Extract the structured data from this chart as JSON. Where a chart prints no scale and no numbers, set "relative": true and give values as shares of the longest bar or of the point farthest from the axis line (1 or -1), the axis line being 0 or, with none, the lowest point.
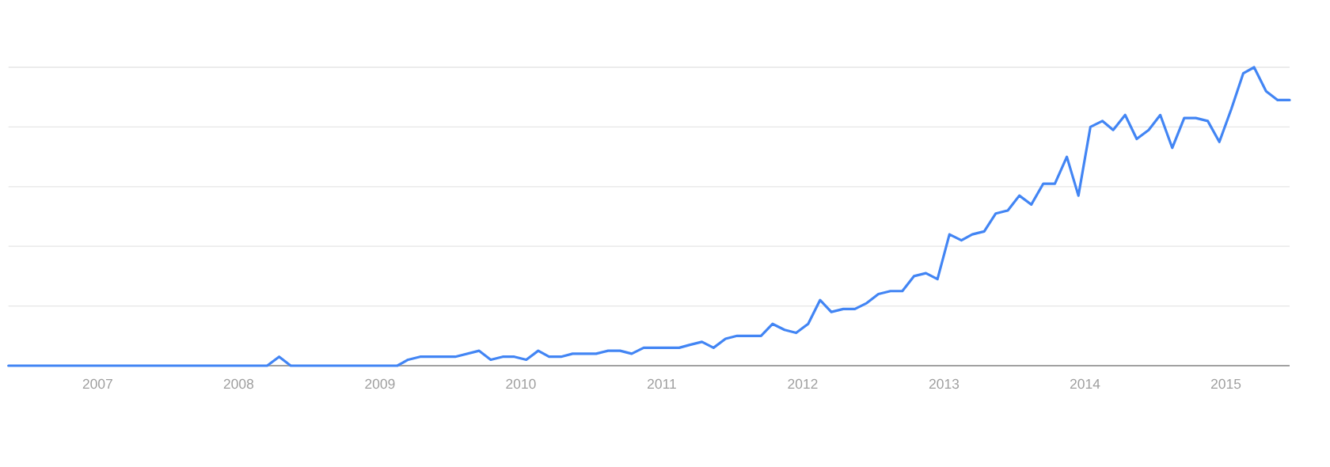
{
  "chart_data": {
    "type": "line",
    "relative": true,
    "color": "#4285f4",
    "grid": "y",
    "xlim": [
      "2006-05-15",
      "2015-06-15"
    ],
    "xticks": [
      "2007",
      "2008",
      "2009",
      "2010",
      "2011",
      "2012",
      "2013",
      "2014",
      "2015"
    ],
    "x": [
      "2006-05-15",
      "2006-06-15",
      "2006-07-15",
      "2006-08-15",
      "2006-09-15",
      "2006-10-15",
      "2006-11-15",
      "2006-12-15",
      "2007-01-15",
      "2007-02-15",
      "2007-03-15",
      "2007-04-15",
      "2007-05-15",
      "2007-06-15",
      "2007-07-15",
      "2007-08-15",
      "2007-09-15",
      "2007-10-15",
      "2007-11-15",
      "2007-12-15",
      "2008-01-15",
      "2008-02-15",
      "2008-03-15",
      "2008-04-15",
      "2008-05-15",
      "2008-06-15",
      "2008-07-15",
      "2008-08-15",
      "2008-09-15",
      "2008-10-15",
      "2008-11-15",
      "2008-12-15",
      "2009-01-15",
      "2009-02-15",
      "2009-03-15",
      "2009-04-15",
      "2009-05-15",
      "2009-06-15",
      "2009-07-15",
      "2009-08-15",
      "2009-09-15",
      "2009-10-15",
      "2009-11-15",
      "2009-12-15",
      "2010-01-15",
      "2010-02-15",
      "2010-03-15",
      "2010-04-15",
      "2010-05-15",
      "2010-06-15",
      "2010-07-15",
      "2010-08-15",
      "2010-09-15",
      "2010-10-15",
      "2010-11-15",
      "2010-12-15",
      "2011-01-15",
      "2011-02-15",
      "2011-03-15",
      "2011-04-15",
      "2011-05-15",
      "2011-06-15",
      "2011-07-15",
      "2011-08-15",
      "2011-09-15",
      "2011-10-15",
      "2011-11-15",
      "2011-12-15",
      "2012-01-15",
      "2012-02-15",
      "2012-03-15",
      "2012-04-15",
      "2012-05-15",
      "2012-06-15",
      "2012-07-15",
      "2012-08-15",
      "2012-09-15",
      "2012-10-15",
      "2012-11-15",
      "2012-12-15",
      "2013-01-15",
      "2013-02-15",
      "2013-03-15",
      "2013-04-15",
      "2013-05-15",
      "2013-06-15",
      "2013-07-15",
      "2013-08-15",
      "2013-09-15",
      "2013-10-15",
      "2013-11-15",
      "2013-12-15",
      "2014-01-15",
      "2014-02-15",
      "2014-03-15",
      "2014-04-15",
      "2014-05-15",
      "2014-06-15",
      "2014-07-15",
      "2014-08-15",
      "2014-09-15",
      "2014-10-15",
      "2014-11-15",
      "2014-12-15",
      "2015-01-15",
      "2015-02-15",
      "2015-03-15",
      "2015-04-15",
      "2015-05-15",
      "2015-06-15"
    ],
    "values": [
      0,
      0,
      0,
      0,
      0,
      0,
      0,
      0,
      0,
      0,
      0,
      0,
      0,
      0,
      0,
      0,
      0,
      0,
      0,
      0,
      0,
      0,
      0,
      0.03,
      0,
      0,
      0,
      0,
      0,
      0,
      0,
      0,
      0,
      0,
      0.02,
      0.03,
      0.03,
      0.03,
      0.03,
      0.04,
      0.05,
      0.02,
      0.03,
      0.03,
      0.02,
      0.05,
      0.03,
      0.03,
      0.04,
      0.04,
      0.04,
      0.05,
      0.05,
      0.04,
      0.06,
      0.06,
      0.06,
      0.06,
      0.07,
      0.08,
      0.06,
      0.09,
      0.1,
      0.1,
      0.1,
      0.14,
      0.12,
      0.11,
      0.14,
      0.22,
      0.18,
      0.19,
      0.19,
      0.21,
      0.24,
      0.25,
      0.25,
      0.3,
      0.31,
      0.29,
      0.44,
      0.42,
      0.44,
      0.45,
      0.51,
      0.52,
      0.57,
      0.54,
      0.61,
      0.61,
      0.7,
      0.57,
      0.8,
      0.82,
      0.79,
      0.84,
      0.76,
      0.79,
      0.84,
      0.73,
      0.83,
      0.83,
      0.82,
      0.75,
      0.86,
      0.98,
      1,
      0.92,
      0.89,
      0.89
    ]
  }
}
